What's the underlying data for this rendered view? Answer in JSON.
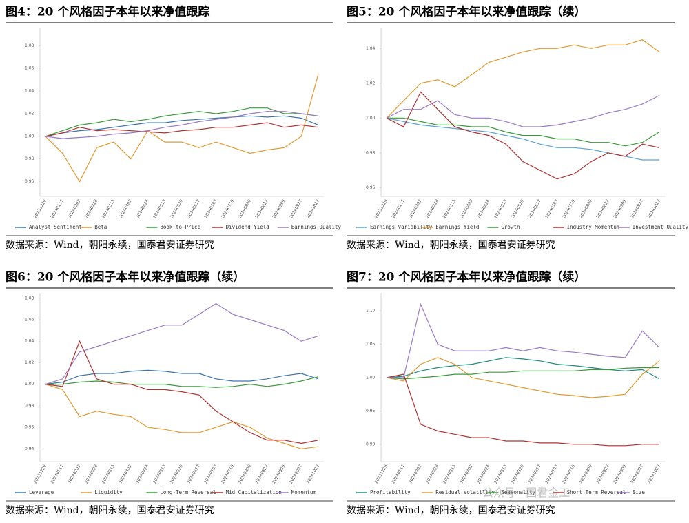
{
  "watermark": "公众号 · 国君金工",
  "chart_data": [
    {
      "type": "line",
      "title": "图4：20 个风格因子本年以来净值跟踪",
      "source": "数据来源：Wind，朝阳永续，国泰君安证券研究",
      "categories": [
        "20231229",
        "20240117",
        "20240202",
        "20240228",
        "20240315",
        "20240402",
        "20240424",
        "20240513",
        "20240529",
        "20240617",
        "20240703",
        "20240719",
        "20240806",
        "20240822",
        "20240909",
        "20240927",
        "20241022"
      ],
      "ylim": [
        0.947,
        1.096
      ],
      "yticks": [
        0.96,
        0.98,
        {
          "value": 1,
          "label": "1.00"
        },
        1.02,
        1.04,
        1.06,
        1.08
      ],
      "series": [
        {
          "name": "Analyst Sentiment",
          "color": "#3a75b0",
          "values": [
            1.0,
            1.003,
            1.005,
            1.006,
            1.008,
            1.01,
            1.012,
            1.012,
            1.014,
            1.015,
            1.016,
            1.017,
            1.018,
            1.017,
            1.018,
            1.016,
            1.01
          ]
        },
        {
          "name": "Beta",
          "color": "#e09a30",
          "values": [
            1.0,
            0.985,
            0.96,
            0.99,
            0.995,
            0.98,
            1.005,
            0.995,
            0.995,
            0.99,
            0.995,
            0.99,
            0.985,
            0.988,
            0.99,
            1.0,
            1.055
          ]
        },
        {
          "name": "Book-to-Price",
          "color": "#3a9b3a",
          "values": [
            1.0,
            1.005,
            1.01,
            1.012,
            1.015,
            1.013,
            1.015,
            1.018,
            1.02,
            1.022,
            1.02,
            1.022,
            1.025,
            1.025,
            1.02,
            1.02,
            1.018
          ]
        },
        {
          "name": "Dividend Yield",
          "color": "#b03030",
          "values": [
            1.0,
            1.003,
            1.008,
            1.005,
            1.006,
            1.005,
            1.004,
            1.003,
            1.005,
            1.006,
            1.008,
            1.008,
            1.01,
            1.012,
            1.008,
            1.01,
            1.008
          ]
        },
        {
          "name": "Earnings Quality",
          "color": "#9a7ac4",
          "values": [
            1.0,
            0.998,
            0.999,
            1.0,
            1.002,
            1.003,
            1.005,
            1.008,
            1.01,
            1.013,
            1.015,
            1.017,
            1.02,
            1.022,
            1.022,
            1.02,
            1.018
          ]
        }
      ]
    },
    {
      "type": "line",
      "title": "图5：20 个风格因子本年以来净值跟踪（续）",
      "source": "数据来源：Wind，朝阳永续，国泰君安证券研究",
      "categories": [
        "20231229",
        "20240117",
        "20240202",
        "20240228",
        "20240315",
        "20240403",
        "20240424",
        "20240513",
        "20240529",
        "20240617",
        "20240703",
        "20240719",
        "20240806",
        "20240822",
        "20240909",
        "20240927",
        "20241022"
      ],
      "ylim": [
        0.955,
        1.052
      ],
      "yticks": [
        0.96,
        0.98,
        {
          "value": 1,
          "label": "1.00"
        },
        1.02,
        1.04
      ],
      "series": [
        {
          "name": "Earnings Variability",
          "color": "#5ba3d6",
          "values": [
            1.0,
            0.998,
            0.996,
            0.995,
            0.994,
            0.993,
            0.992,
            0.99,
            0.988,
            0.985,
            0.983,
            0.983,
            0.982,
            0.98,
            0.978,
            0.976,
            0.976
          ]
        },
        {
          "name": "Earnings Yield",
          "color": "#e09a30",
          "values": [
            1.0,
            1.01,
            1.02,
            1.022,
            1.018,
            1.025,
            1.032,
            1.035,
            1.038,
            1.04,
            1.04,
            1.042,
            1.04,
            1.042,
            1.042,
            1.045,
            1.038
          ]
        },
        {
          "name": "Growth",
          "color": "#3a9b3a",
          "values": [
            1.0,
            1.0,
            0.998,
            0.996,
            0.996,
            0.995,
            0.995,
            0.992,
            0.99,
            0.99,
            0.988,
            0.988,
            0.986,
            0.986,
            0.984,
            0.986,
            0.992
          ]
        },
        {
          "name": "Industry Momentum",
          "color": "#b03030",
          "values": [
            1.0,
            0.995,
            1.015,
            1.005,
            0.995,
            0.992,
            0.99,
            0.985,
            0.975,
            0.97,
            0.965,
            0.968,
            0.975,
            0.98,
            0.978,
            0.985,
            0.983
          ]
        },
        {
          "name": "Investment Quality",
          "color": "#9a7ac4",
          "values": [
            1.0,
            1.005,
            1.005,
            1.01,
            1.002,
            1.0,
            1.0,
            0.998,
            0.995,
            0.995,
            0.996,
            0.998,
            1.0,
            1.003,
            1.005,
            1.008,
            1.013
          ]
        }
      ]
    },
    {
      "type": "line",
      "title": "图6：20 个风格因子本年以来净值跟踪（续）",
      "source": "数据来源：Wind，朝阳永续，国泰君安证券研究",
      "categories": [
        "20231229",
        "20240117",
        "20240202",
        "20240228",
        "20240315",
        "20240402",
        "20240424",
        "20240513",
        "20240529",
        "20240617",
        "20240703",
        "20240719",
        "20240806",
        "20240822",
        "20240909",
        "20240927",
        "20241022"
      ],
      "ylim": [
        0.928,
        1.085
      ],
      "yticks": [
        0.94,
        0.96,
        0.98,
        {
          "value": 1,
          "label": "1.00"
        },
        1.02,
        1.04,
        1.06,
        1.08
      ],
      "series": [
        {
          "name": "Leverage",
          "color": "#3a75b0",
          "values": [
            1.0,
            1.002,
            1.008,
            1.01,
            1.01,
            1.012,
            1.013,
            1.012,
            1.01,
            1.01,
            1.005,
            1.003,
            1.003,
            1.005,
            1.008,
            1.01,
            1.005
          ]
        },
        {
          "name": "Liquidity",
          "color": "#e09a30",
          "values": [
            1.0,
            0.995,
            0.97,
            0.975,
            0.972,
            0.97,
            0.96,
            0.958,
            0.955,
            0.955,
            0.96,
            0.965,
            0.96,
            0.95,
            0.945,
            0.94,
            0.942
          ]
        },
        {
          "name": "Long-Term Reversal",
          "color": "#3a9b3a",
          "values": [
            1.0,
            1.0,
            1.002,
            1.003,
            1.002,
            1.0,
            1.0,
            1.0,
            0.998,
            0.998,
            0.997,
            0.998,
            1.0,
            0.998,
            1.0,
            1.003,
            1.007
          ]
        },
        {
          "name": "Mid Capitalization",
          "color": "#b03030",
          "values": [
            1.0,
            0.998,
            1.04,
            1.005,
            1.0,
            1.0,
            0.995,
            0.995,
            0.993,
            0.99,
            0.975,
            0.965,
            0.955,
            0.948,
            0.948,
            0.945,
            0.948
          ]
        },
        {
          "name": "Momentum",
          "color": "#9a7ac4",
          "values": [
            1.0,
            1.005,
            1.03,
            1.035,
            1.04,
            1.045,
            1.05,
            1.055,
            1.055,
            1.065,
            1.075,
            1.065,
            1.06,
            1.055,
            1.05,
            1.04,
            1.045
          ]
        }
      ]
    },
    {
      "type": "line",
      "title": "图7：20 个风格因子本年以来净值跟踪（续）",
      "source": "数据来源：Wind，朝阳永续，国泰君安证券研究",
      "categories": [
        "20231229",
        "20240117",
        "20240202",
        "20240228",
        "20240315",
        "20240402",
        "20240424",
        "20240513",
        "20240529",
        "20240617",
        "20240703",
        "20240719",
        "20240806",
        "20240822",
        "20240909",
        "20240927",
        "20241022"
      ],
      "ylim": [
        0.874,
        1.127
      ],
      "yticks": [
        {
          "value": 0.9,
          "label": "0.90"
        },
        0.95,
        {
          "value": 1,
          "label": "1.00"
        },
        1.05,
        {
          "value": 1.1,
          "label": "1.10"
        }
      ],
      "series": [
        {
          "name": "Profitability",
          "color": "#1f8a7a",
          "values": [
            1.0,
            1.002,
            1.01,
            1.015,
            1.018,
            1.02,
            1.025,
            1.03,
            1.028,
            1.025,
            1.02,
            1.018,
            1.015,
            1.012,
            1.01,
            1.012,
            0.998
          ]
        },
        {
          "name": "Residual Volatility",
          "color": "#e09a30",
          "values": [
            1.0,
            0.995,
            1.02,
            1.03,
            1.02,
            1.0,
            0.995,
            0.99,
            0.985,
            0.98,
            0.975,
            0.973,
            0.97,
            0.972,
            0.975,
            1.005,
            1.025
          ]
        },
        {
          "name": "Seasonality",
          "color": "#3a9b3a",
          "values": [
            1.0,
            0.998,
            1.0,
            1.002,
            1.005,
            1.005,
            1.008,
            1.008,
            1.01,
            1.01,
            1.01,
            1.01,
            1.012,
            1.012,
            1.014,
            1.015,
            1.015
          ]
        },
        {
          "name": "Short Term Reversal",
          "color": "#b03030",
          "values": [
            1.0,
            1.005,
            0.93,
            0.92,
            0.915,
            0.91,
            0.91,
            0.905,
            0.905,
            0.902,
            0.902,
            0.9,
            0.9,
            0.898,
            0.898,
            0.9,
            0.9
          ]
        },
        {
          "name": "Size",
          "color": "#9a7ac4",
          "values": [
            1.0,
            1.0,
            1.11,
            1.05,
            1.04,
            1.04,
            1.04,
            1.045,
            1.04,
            1.045,
            1.04,
            1.038,
            1.035,
            1.032,
            1.03,
            1.07,
            1.045
          ]
        }
      ]
    }
  ]
}
